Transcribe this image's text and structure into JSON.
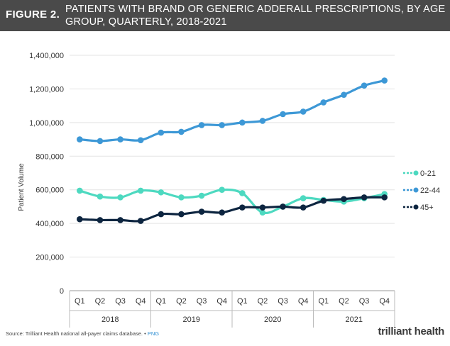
{
  "header": {
    "figure_label": "FIGURE 2.",
    "title": "PATIENTS WITH BRAND OR GENERIC ADDERALL PRESCRIPTIONS, BY AGE GROUP, QUARTERLY, 2018-2021"
  },
  "chart_data": {
    "type": "line",
    "title": "PATIENTS WITH BRAND OR GENERIC ADDERALL PRESCRIPTIONS, BY AGE GROUP, QUARTERLY, 2018-2021",
    "ylabel": "Patient Volume",
    "xlabel": "",
    "ylim": [
      0,
      1400000
    ],
    "yticks": [
      0,
      200000,
      400000,
      600000,
      800000,
      1000000,
      1200000,
      1400000
    ],
    "ytick_labels": [
      "0",
      "200,000",
      "400,000",
      "600,000",
      "800,000",
      "1,000,000",
      "1,200,000",
      "1,400,000"
    ],
    "categories": [
      "Q1",
      "Q2",
      "Q3",
      "Q4",
      "Q1",
      "Q2",
      "Q3",
      "Q4",
      "Q1",
      "Q2",
      "Q3",
      "Q4",
      "Q1",
      "Q2",
      "Q3",
      "Q4"
    ],
    "year_groups": [
      "2018",
      "2019",
      "2020",
      "2021"
    ],
    "grid": true,
    "legend_position": "right",
    "series": [
      {
        "name": "0-21",
        "color": "#4dd9c0",
        "values": [
          595000,
          560000,
          555000,
          595000,
          585000,
          555000,
          565000,
          600000,
          580000,
          465000,
          500000,
          550000,
          540000,
          530000,
          550000,
          575000
        ]
      },
      {
        "name": "22-44",
        "color": "#3d98d6",
        "values": [
          900000,
          890000,
          900000,
          895000,
          940000,
          945000,
          985000,
          985000,
          1000000,
          1010000,
          1050000,
          1065000,
          1120000,
          1165000,
          1220000,
          1250000
        ]
      },
      {
        "name": "45+",
        "color": "#0d2540",
        "values": [
          425000,
          420000,
          420000,
          415000,
          455000,
          455000,
          470000,
          465000,
          495000,
          495000,
          500000,
          495000,
          535000,
          545000,
          555000,
          555000
        ]
      }
    ]
  },
  "footer": {
    "source": "Source: Trilliant Health national all-payer claims database.",
    "separator": "•",
    "link": "PNG",
    "logo": "trilliant health"
  }
}
